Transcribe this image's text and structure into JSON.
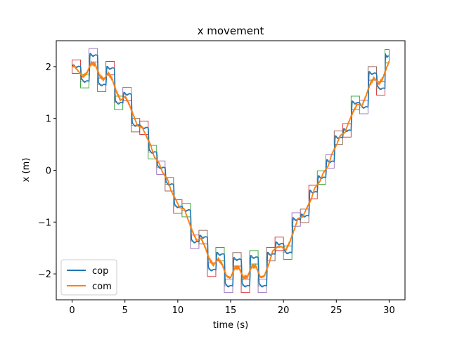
{
  "chart_data": {
    "type": "line",
    "title": "x movement",
    "xlabel": "time (s)",
    "ylabel": "x (m)",
    "xlim": [
      -1.5,
      31.5
    ],
    "ylim": [
      -2.5,
      2.5
    ],
    "x_ticks": [
      0,
      5,
      10,
      15,
      20,
      25,
      30
    ],
    "x_tick_labels": [
      "0",
      "5",
      "10",
      "15",
      "20",
      "25",
      "30"
    ],
    "y_ticks": [
      -2,
      -1,
      0,
      1,
      2
    ],
    "y_tick_labels": [
      "−2",
      "−1",
      "0",
      "1",
      "2"
    ],
    "grid": false,
    "legend_position": "lower-left",
    "steps": {
      "note_free": true,
      "t": [
        0,
        0.8,
        1.6,
        2.4,
        3.2,
        4.0,
        4.8,
        5.6,
        6.4,
        7.2,
        8.0,
        8.8,
        9.6,
        10.4,
        11.2,
        12.0,
        12.8,
        13.6,
        14.4,
        15.2,
        16.0,
        16.8,
        17.6,
        18.4,
        19.2,
        20.0,
        20.8,
        21.6,
        22.4,
        23.2,
        24.0,
        24.8,
        25.6,
        26.4,
        27.2,
        28.0,
        28.8,
        29.6,
        30.0
      ],
      "x": [
        2.0,
        1.72,
        2.22,
        1.65,
        1.97,
        1.3,
        1.47,
        0.87,
        0.82,
        0.35,
        0.05,
        -0.27,
        -0.7,
        -0.77,
        -1.38,
        -1.29,
        -1.92,
        -1.62,
        -2.23,
        -1.72,
        -2.23,
        -1.68,
        -2.23,
        -1.62,
        -1.42,
        -1.59,
        -0.95,
        -0.88,
        -0.42,
        -0.14,
        0.17,
        0.63,
        0.77,
        1.3,
        1.22,
        1.87,
        1.58,
        2.2,
        2.2
      ]
    },
    "foot_boxes": [
      {
        "color": "#d62728",
        "upper": [
          2.25,
          2.22,
          1.98,
          1.5,
          0.87,
          0.35,
          -0.28,
          -0.77,
          -1.3,
          -1.62,
          -1.72,
          -1.68,
          -1.42,
          -0.95,
          -0.42,
          0.17,
          0.77,
          1.3,
          1.87,
          2.2
        ]
      },
      {
        "color": "#2ca02c",
        "lower": [
          1.75,
          1.65,
          1.3,
          0.82,
          0.05,
          -0.7,
          -1.38,
          -1.92,
          -2.23,
          -2.23,
          -2.23,
          -1.6,
          -0.88,
          -0.14,
          0.63,
          1.22,
          1.58,
          2.13
        ]
      }
    ],
    "series": [
      {
        "name": "cop",
        "color": "#1f77b4"
      },
      {
        "name": "com",
        "color": "#ff7f0e"
      }
    ]
  }
}
